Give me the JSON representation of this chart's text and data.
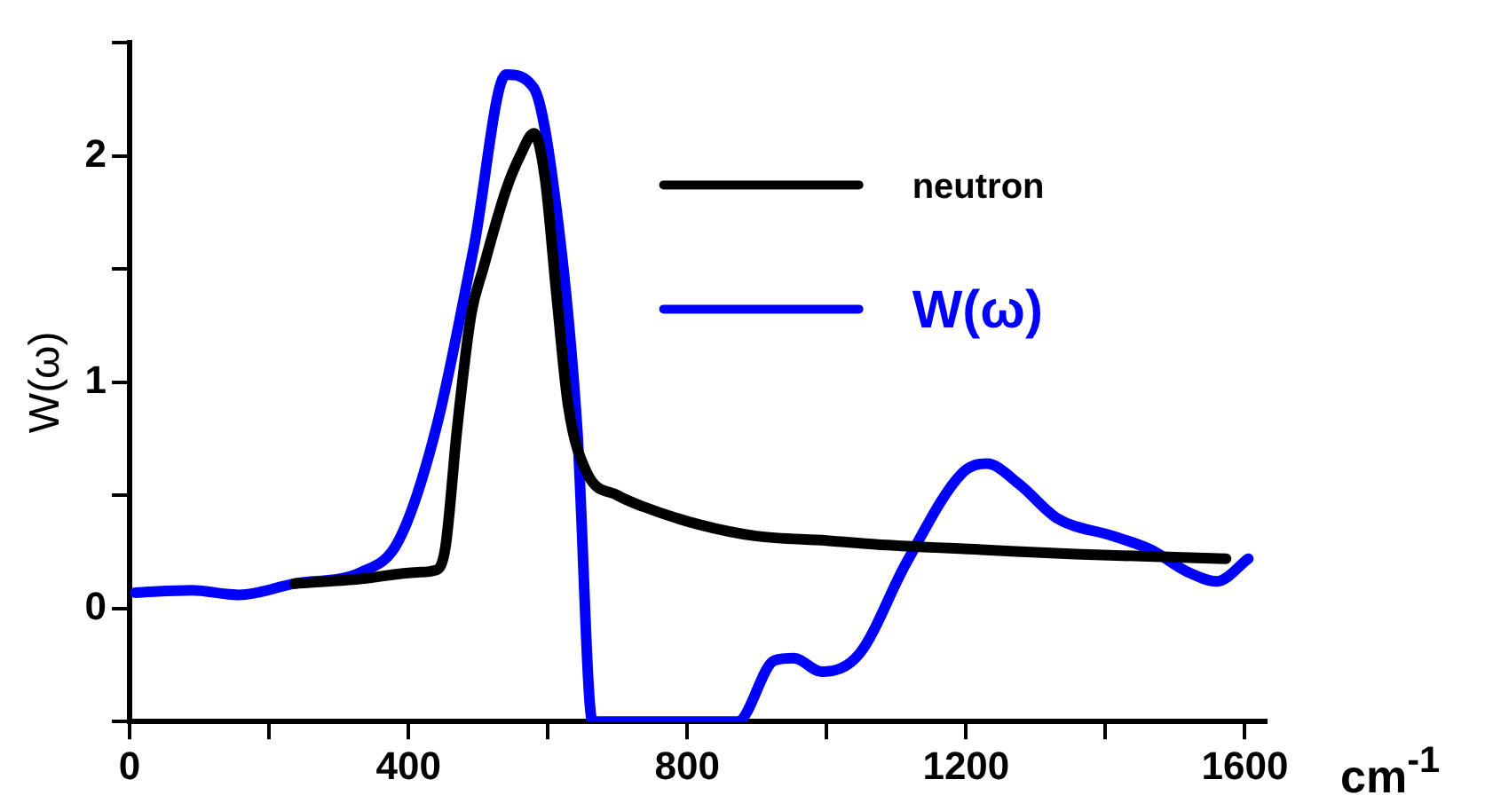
{
  "chart_data": {
    "type": "line",
    "xlabel": "cm$^{-1}$",
    "ylabel": "W(ω)",
    "xlim": [
      0,
      1630
    ],
    "ylim": [
      -0.5,
      2.5
    ],
    "xticks": [
      0,
      {
        "value": 200,
        "label": null
      },
      400,
      {
        "value": 600,
        "label": null
      },
      800,
      {
        "value": 1000,
        "label": null
      },
      1200,
      {
        "value": 1400,
        "label": null
      },
      1600
    ],
    "yticks": [
      {
        "value": -0.5,
        "label": null
      },
      0,
      {
        "value": 0.5,
        "label": null
      },
      1,
      {
        "value": 1.5,
        "label": null
      },
      2,
      {
        "value": 2.5,
        "label": null
      }
    ],
    "grid": false,
    "legend": "top right",
    "marker": "none",
    "line_style": "solid",
    "series": [
      {
        "name": "neutron",
        "color": "#000000",
        "x": [
          237,
          330,
          413,
          440,
          453,
          470,
          490,
          507,
          540,
          560,
          580,
          596,
          612,
          629,
          656,
          700,
          737,
          818,
          899,
          1000,
          1087,
          1222,
          1357,
          1573
        ],
        "values": [
          0.11,
          0.13,
          0.16,
          0.17,
          0.27,
          0.8,
          1.3,
          1.5,
          1.85,
          2.0,
          2.1,
          1.9,
          1.4,
          0.9,
          0.6,
          0.5,
          0.45,
          0.37,
          0.32,
          0.3,
          0.28,
          0.26,
          0.24,
          0.22
        ]
      },
      {
        "name": "W(ω)",
        "color": "#0000ff",
        "x": [
          8,
          89,
          157,
          237,
          332,
          386,
          440,
          494,
          540,
          580,
          615,
          642,
          664,
          872,
          925,
          953,
          993,
          1047,
          1114,
          1195,
          1230,
          1276,
          1330,
          1411,
          1465,
          1519,
          1560,
          1605
        ],
        "values": [
          0.07,
          0.08,
          0.06,
          0.11,
          0.16,
          0.3,
          0.8,
          1.6,
          2.36,
          2.3,
          1.7,
          0.8,
          -0.5,
          -0.5,
          -0.23,
          -0.22,
          -0.28,
          -0.2,
          0.2,
          0.6,
          0.64,
          0.55,
          0.4,
          0.32,
          0.26,
          0.16,
          0.12,
          0.22
        ]
      }
    ]
  }
}
